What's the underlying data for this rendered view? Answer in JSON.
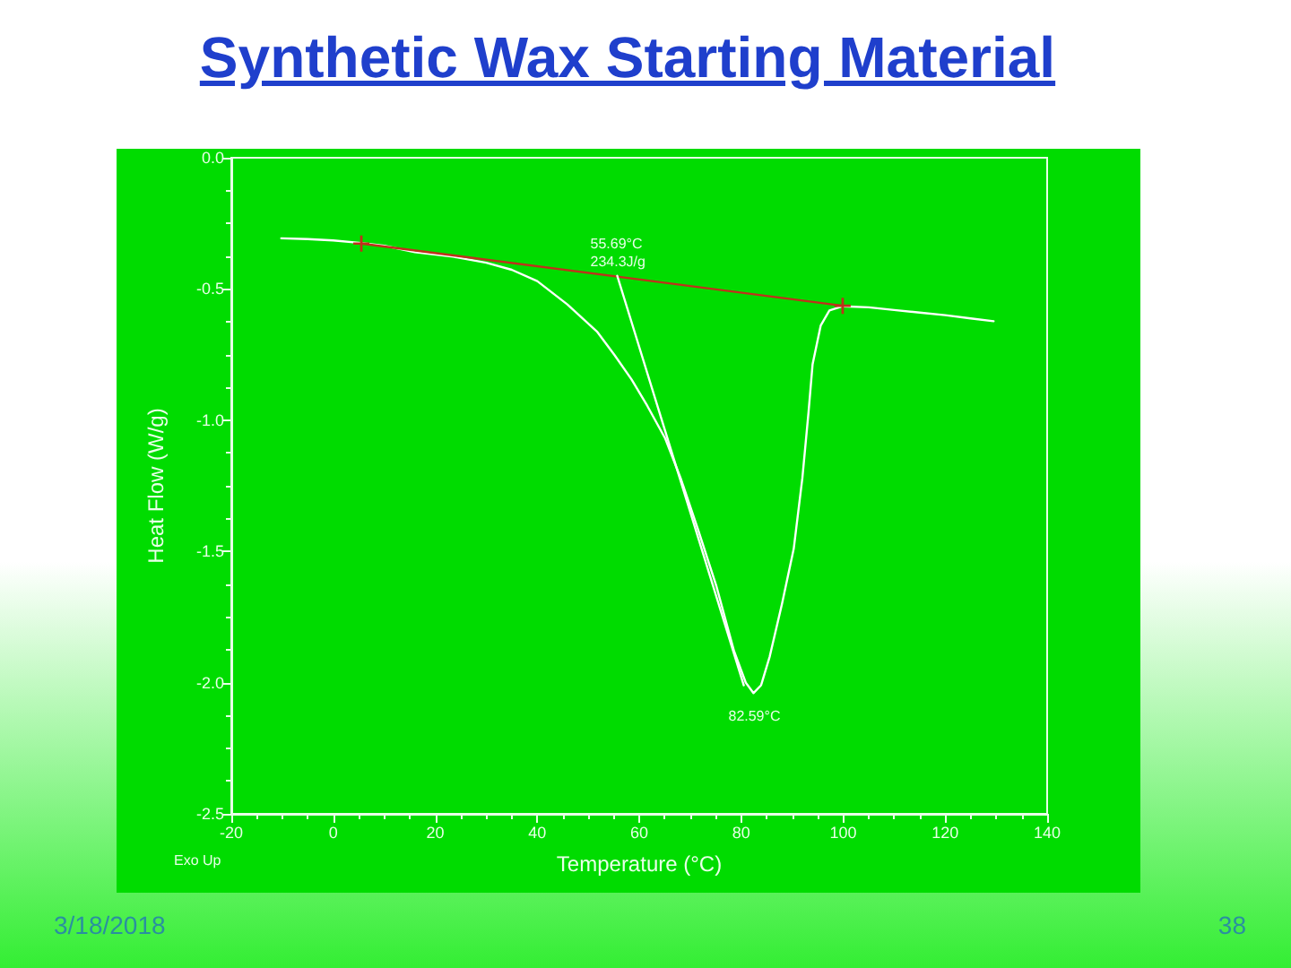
{
  "chart_data": {
    "type": "line",
    "title": "Synthetic Wax Starting Material",
    "xlabel": "Temperature (°C)",
    "ylabel": "Heat Flow (W/g)",
    "series": [
      {
        "x": [
          -10.2,
          -5,
          0,
          5.5,
          10,
          16,
          23.5,
          30,
          35,
          40,
          45.9,
          51.7,
          55.2,
          58.5,
          61.6,
          65.1,
          68.1,
          71.6,
          75.1,
          78.6,
          80.9,
          82.4,
          83.9,
          85.6,
          88.0,
          90.3,
          92.0,
          93.2,
          94.0,
          95.6,
          97.3,
          99.9,
          105,
          110,
          115,
          120,
          125,
          129.5
        ],
        "values": [
          -0.307,
          -0.31,
          -0.315,
          -0.325,
          -0.335,
          -0.36,
          -0.377,
          -0.4,
          -0.427,
          -0.47,
          -0.559,
          -0.662,
          -0.753,
          -0.845,
          -0.946,
          -1.07,
          -1.22,
          -1.42,
          -1.63,
          -1.88,
          -2.0,
          -2.04,
          -2.01,
          -1.9,
          -1.7,
          -1.49,
          -1.22,
          -0.97,
          -0.787,
          -0.639,
          -0.582,
          -0.566,
          -0.57,
          -0.58,
          -0.59,
          -0.6,
          -0.612,
          -0.623
        ],
        "color": "#ffffff"
      },
      {
        "x": [
          5.5,
          99.9
        ],
        "values": [
          -0.327,
          -0.564
        ],
        "color": "#c0301c",
        "marker": "cross"
      },
      {
        "x": [
          55.69,
          80.5
        ],
        "values": [
          -0.45,
          -2.01
        ],
        "color": "#ffffff"
      }
    ],
    "xlim": [
      -20,
      140
    ],
    "xticks": [
      -20,
      0,
      20,
      40,
      60,
      80,
      100,
      120,
      140
    ],
    "ylim": [
      -2.5,
      0
    ],
    "yticks": [
      {
        "value": 0,
        "label": "0.0"
      },
      -0.5,
      {
        "value": -1,
        "label": "-1.0"
      },
      -1.5,
      {
        "value": -2,
        "label": "-2.0"
      },
      -2.5
    ],
    "marker": "none",
    "line_style": "solid",
    "annotations": [
      {
        "text": "55.69°C\n234.3J/g",
        "x": 55.69,
        "y": -0.45
      },
      {
        "text": "82.59°C",
        "x": 82.59,
        "y": -2.04
      },
      "Exo Up",
      "3/18/2018",
      "38"
    ]
  }
}
